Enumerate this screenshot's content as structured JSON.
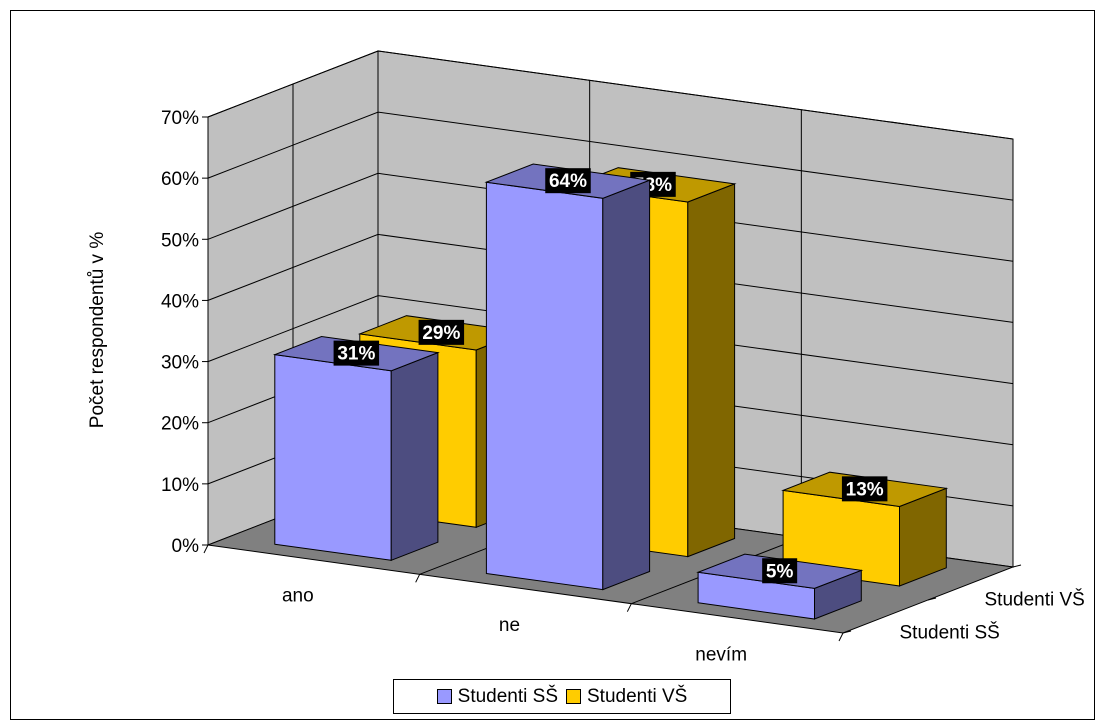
{
  "chart_data": {
    "type": "bar",
    "categories": [
      "ano",
      "ne",
      "nevím"
    ],
    "series": [
      {
        "name": "Studenti SŠ",
        "values": [
          31,
          64,
          5
        ],
        "labels": [
          "31%",
          "64%",
          "5%"
        ],
        "color": "#9999FF"
      },
      {
        "name": "Studenti VŠ",
        "values": [
          29,
          58,
          13
        ],
        "labels": [
          "29%",
          "58%",
          "13%"
        ],
        "color": "#FFCC00"
      }
    ],
    "title": "",
    "xlabel": "",
    "ylabel": "Počet respondentů v %",
    "ylim": [
      0,
      70
    ],
    "yticks": [
      "0%",
      "10%",
      "20%",
      "30%",
      "40%",
      "50%",
      "60%",
      "70%"
    ],
    "depth_labels": [
      "Studenti SŠ",
      "Studenti VŠ"
    ],
    "grid": true,
    "legend_position": "bottom",
    "wall_color": "#C0C0C0",
    "floor_color": "#808080"
  }
}
